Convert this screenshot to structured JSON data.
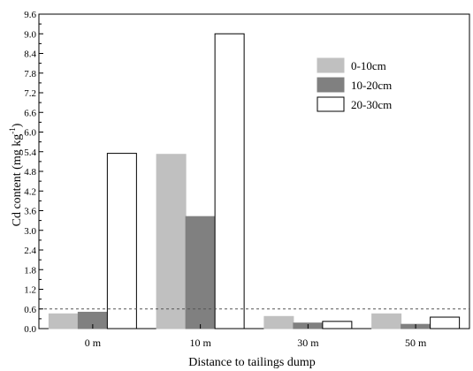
{
  "chart_data": {
    "type": "bar",
    "categories": [
      "0 m",
      "10 m",
      "30 m",
      "50 m"
    ],
    "series": [
      {
        "name": "0-10cm",
        "values": [
          0.45,
          5.32,
          0.37,
          0.45
        ],
        "color": "#c0c0c0",
        "stroke": "#c0c0c0"
      },
      {
        "name": "10-20cm",
        "values": [
          0.5,
          3.42,
          0.17,
          0.13
        ],
        "color": "#808080",
        "stroke": "#808080"
      },
      {
        "name": "20-30cm",
        "values": [
          5.35,
          9.0,
          0.22,
          0.35
        ],
        "color": "#ffffff",
        "stroke": "#000000"
      }
    ],
    "xlabel": "Distance to tailings dump",
    "ylabel": "Cd content (mg kg",
    "ylabel_sup": "-1",
    "ylabel_close": ")",
    "ylim": [
      0,
      9.6
    ],
    "yticks": [
      "0.0",
      "0.6",
      "1.2",
      "1.8",
      "2.4",
      "3.0",
      "3.6",
      "4.2",
      "4.8",
      "5.4",
      "6.0",
      "6.6",
      "7.2",
      "7.8",
      "8.4",
      "9.0",
      "9.6"
    ],
    "reference_line": {
      "value": 0.6,
      "style": "dashed"
    },
    "legend_position": "top-right",
    "grid": false
  }
}
